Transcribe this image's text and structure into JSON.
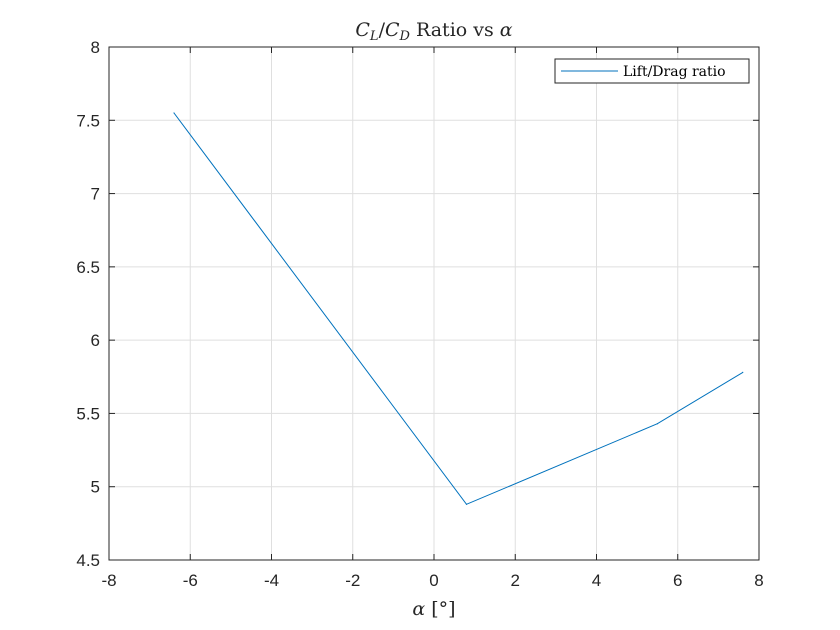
{
  "chart_data": {
    "type": "line",
    "title": {
      "cl": "C",
      "cl_sub": "L",
      "slash": "/",
      "cd": "C",
      "cd_sub": "D",
      "rest": " Ratio vs ",
      "alpha": "α"
    },
    "xlabel": {
      "alpha": "α",
      "unit": " [°]"
    },
    "ylabel": "",
    "xlim": [
      -8,
      8
    ],
    "ylim": [
      4.5,
      8
    ],
    "xticks": [
      -8,
      -6,
      -4,
      -2,
      0,
      2,
      4,
      6,
      8
    ],
    "yticks": [
      4.5,
      5,
      5.5,
      6,
      6.5,
      7,
      7.5,
      8
    ],
    "grid": true,
    "legend_position": "top-right",
    "series": [
      {
        "name": "Lift/Drag ratio",
        "color": "#0072bd",
        "x": [
          -6.4,
          0.8,
          5.5,
          7.6
        ],
        "y": [
          7.55,
          4.88,
          5.43,
          5.78
        ]
      }
    ]
  }
}
